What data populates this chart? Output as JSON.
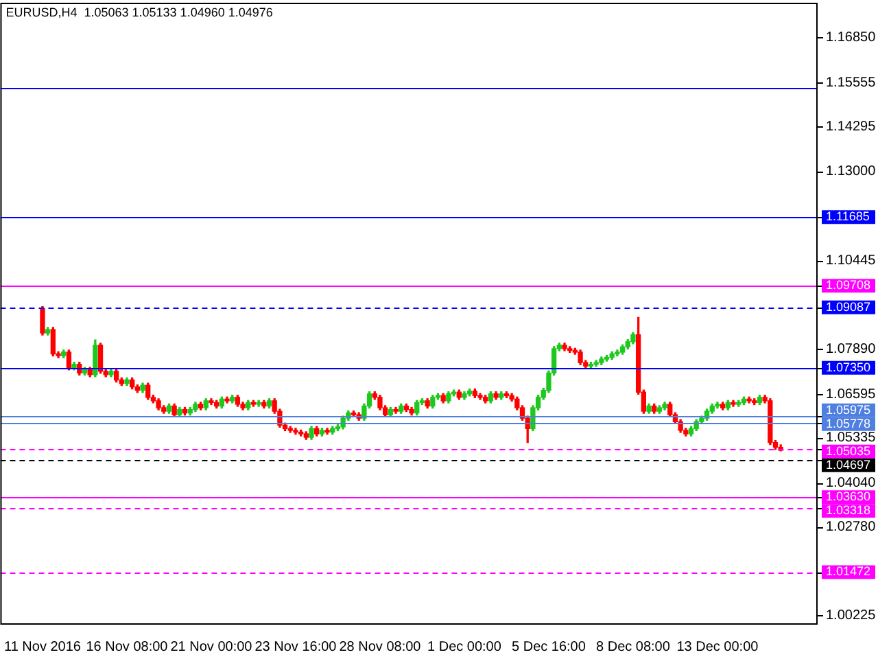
{
  "chart_data": {
    "type": "candlestick",
    "title": "EURUSD,H4  1.05063 1.05133 1.04960 1.04976",
    "categories": [
      "11 Nov 2016",
      null,
      null,
      null,
      null,
      null,
      null,
      null,
      null,
      null,
      null,
      null,
      null,
      null,
      null,
      null,
      "16 Nov 08:00",
      null,
      null,
      null,
      null,
      null,
      null,
      null,
      null,
      null,
      null,
      null,
      null,
      null,
      null,
      null,
      "21 Nov 00:00",
      null,
      null,
      null,
      null,
      null,
      null,
      null,
      null,
      null,
      null,
      null,
      null,
      null,
      null,
      null,
      "23 Nov 16:00",
      null,
      null,
      null,
      null,
      null,
      null,
      null,
      null,
      null,
      null,
      null,
      null,
      null,
      null,
      null,
      "28 Nov 08:00",
      null,
      null,
      null,
      null,
      null,
      null,
      null,
      null,
      null,
      null,
      null,
      null,
      null,
      null,
      null,
      "1 Dec 00:00",
      null,
      null,
      null,
      null,
      null,
      null,
      null,
      null,
      null,
      null,
      null,
      null,
      null,
      null,
      null,
      "5 Dec 16:00",
      null,
      null,
      null,
      null,
      null,
      null,
      null,
      null,
      null,
      null,
      null,
      null,
      null,
      null,
      null,
      "8 Dec 08:00",
      null,
      null,
      null,
      null,
      null,
      null,
      null,
      null,
      null,
      null,
      null,
      null,
      null,
      null,
      null,
      "13 Dec 00:00",
      null,
      null,
      null,
      null,
      null,
      null,
      null,
      null,
      null,
      null,
      null,
      null
    ],
    "ohlc": [
      [
        1.0905,
        1.0911,
        1.0829,
        1.0835
      ],
      [
        1.0835,
        1.0851,
        1.0829,
        1.0845
      ],
      [
        1.0845,
        1.0851,
        1.0769,
        1.0775
      ],
      [
        1.0775,
        1.0781,
        1.0764,
        1.077
      ],
      [
        1.077,
        1.0786,
        1.0764,
        1.078
      ],
      [
        1.078,
        1.0786,
        1.0729,
        1.0735
      ],
      [
        1.0735,
        1.0751,
        1.0729,
        1.0745
      ],
      [
        1.0745,
        1.0751,
        1.0714,
        1.072
      ],
      [
        1.072,
        1.0736,
        1.0714,
        1.073
      ],
      [
        1.073,
        1.0736,
        1.0709,
        1.0715
      ],
      [
        1.0715,
        1.0815,
        1.0709,
        1.08
      ],
      [
        1.08,
        1.0806,
        1.0719,
        1.0725
      ],
      [
        1.0725,
        1.0731,
        1.0709,
        1.0715
      ],
      [
        1.0715,
        1.0731,
        1.0709,
        1.0725
      ],
      [
        1.0725,
        1.0731,
        1.0694,
        1.07
      ],
      [
        1.07,
        1.0706,
        1.0684,
        1.069
      ],
      [
        1.069,
        1.0706,
        1.0684,
        1.07
      ],
      [
        1.07,
        1.0706,
        1.0674,
        1.068
      ],
      [
        1.068,
        1.0686,
        1.0664,
        1.067
      ],
      [
        1.067,
        1.0691,
        1.0664,
        1.0685
      ],
      [
        1.0685,
        1.0691,
        1.0644,
        1.065
      ],
      [
        1.065,
        1.0656,
        1.0634,
        1.064
      ],
      [
        1.064,
        1.0646,
        1.0614,
        1.062
      ],
      [
        1.062,
        1.0626,
        1.0604,
        1.061
      ],
      [
        1.061,
        1.0631,
        1.0604,
        1.0625
      ],
      [
        1.0625,
        1.0631,
        1.0594,
        1.06
      ],
      [
        1.06,
        1.0621,
        1.0594,
        1.0615
      ],
      [
        1.0615,
        1.0621,
        1.0599,
        1.0605
      ],
      [
        1.0605,
        1.0621,
        1.0599,
        1.0615
      ],
      [
        1.0615,
        1.0636,
        1.0609,
        1.063
      ],
      [
        1.063,
        1.0636,
        1.0614,
        1.062
      ],
      [
        1.062,
        1.0646,
        1.0614,
        1.064
      ],
      [
        1.064,
        1.0646,
        1.0629,
        1.0635
      ],
      [
        1.0635,
        1.0641,
        1.0619,
        1.0625
      ],
      [
        1.0625,
        1.0651,
        1.0619,
        1.0645
      ],
      [
        1.0645,
        1.0651,
        1.0634,
        1.064
      ],
      [
        1.064,
        1.0656,
        1.0634,
        1.065
      ],
      [
        1.065,
        1.0656,
        1.0624,
        1.063
      ],
      [
        1.063,
        1.0636,
        1.0614,
        1.062
      ],
      [
        1.062,
        1.0641,
        1.0614,
        1.0635
      ],
      [
        1.0635,
        1.0641,
        1.0624,
        1.063
      ],
      [
        1.063,
        1.0641,
        1.0624,
        1.0635
      ],
      [
        1.0635,
        1.0641,
        1.0619,
        1.0625
      ],
      [
        1.0625,
        1.0646,
        1.0619,
        1.064
      ],
      [
        1.064,
        1.0646,
        1.0604,
        1.061
      ],
      [
        1.061,
        1.0616,
        1.0564,
        1.057
      ],
      [
        1.057,
        1.0576,
        1.0554,
        1.056
      ],
      [
        1.056,
        1.0566,
        1.0549,
        1.0555
      ],
      [
        1.0555,
        1.0561,
        1.0544,
        1.055
      ],
      [
        1.055,
        1.0556,
        1.0539,
        1.0545
      ],
      [
        1.0545,
        1.0551,
        1.0529,
        1.0535
      ],
      [
        1.0535,
        1.0566,
        1.0529,
        1.056
      ],
      [
        1.056,
        1.0566,
        1.0539,
        1.0545
      ],
      [
        1.0545,
        1.0561,
        1.0539,
        1.0555
      ],
      [
        1.0555,
        1.0561,
        1.0544,
        1.055
      ],
      [
        1.055,
        1.0566,
        1.0544,
        1.056
      ],
      [
        1.056,
        1.0571,
        1.0554,
        1.0565
      ],
      [
        1.0565,
        1.0596,
        1.0559,
        1.059
      ],
      [
        1.059,
        1.0611,
        1.0584,
        1.0605
      ],
      [
        1.0605,
        1.0611,
        1.0594,
        1.06
      ],
      [
        1.06,
        1.0606,
        1.0584,
        1.059
      ],
      [
        1.059,
        1.0631,
        1.0584,
        1.0625
      ],
      [
        1.0625,
        1.0666,
        1.0619,
        1.066
      ],
      [
        1.066,
        1.0666,
        1.0644,
        1.065
      ],
      [
        1.065,
        1.0656,
        1.0614,
        1.062
      ],
      [
        1.062,
        1.0626,
        1.0594,
        1.06
      ],
      [
        1.06,
        1.0621,
        1.0594,
        1.0615
      ],
      [
        1.0615,
        1.0621,
        1.0604,
        1.061
      ],
      [
        1.061,
        1.0631,
        1.0604,
        1.0625
      ],
      [
        1.0625,
        1.0631,
        1.0609,
        1.0615
      ],
      [
        1.0615,
        1.0621,
        1.0599,
        1.0605
      ],
      [
        1.0605,
        1.0641,
        1.0599,
        1.0635
      ],
      [
        1.0635,
        1.0646,
        1.0629,
        1.064
      ],
      [
        1.064,
        1.0646,
        1.0619,
        1.0625
      ],
      [
        1.0625,
        1.0656,
        1.0619,
        1.065
      ],
      [
        1.065,
        1.0661,
        1.0644,
        1.0655
      ],
      [
        1.0655,
        1.0661,
        1.0634,
        1.064
      ],
      [
        1.064,
        1.0666,
        1.0634,
        1.066
      ],
      [
        1.066,
        1.0671,
        1.0654,
        1.0665
      ],
      [
        1.0665,
        1.0671,
        1.0644,
        1.065
      ],
      [
        1.065,
        1.0666,
        1.0644,
        1.066
      ],
      [
        1.066,
        1.0674,
        1.0654,
        1.0668
      ],
      [
        1.0668,
        1.0674,
        1.0649,
        1.0655
      ],
      [
        1.0655,
        1.0661,
        1.0644,
        1.065
      ],
      [
        1.065,
        1.0656,
        1.0634,
        1.064
      ],
      [
        1.064,
        1.0666,
        1.0634,
        1.066
      ],
      [
        1.066,
        1.0666,
        1.0644,
        1.065
      ],
      [
        1.065,
        1.0666,
        1.0644,
        1.066
      ],
      [
        1.066,
        1.0666,
        1.0649,
        1.0655
      ],
      [
        1.0655,
        1.0661,
        1.0639,
        1.0645
      ],
      [
        1.0645,
        1.0651,
        1.0614,
        1.062
      ],
      [
        1.062,
        1.0626,
        1.0584,
        1.059
      ],
      [
        1.059,
        1.0596,
        1.052,
        1.056
      ],
      [
        1.056,
        1.0626,
        1.0554,
        1.062
      ],
      [
        1.062,
        1.0656,
        1.0614,
        1.065
      ],
      [
        1.065,
        1.0676,
        1.0644,
        1.067
      ],
      [
        1.067,
        1.0726,
        1.0664,
        1.072
      ],
      [
        1.072,
        1.0796,
        1.0714,
        1.079
      ],
      [
        1.079,
        1.0806,
        1.0784,
        1.08
      ],
      [
        1.08,
        1.0806,
        1.0784,
        1.079
      ],
      [
        1.079,
        1.0796,
        1.0779,
        1.0785
      ],
      [
        1.0785,
        1.0791,
        1.0774,
        1.078
      ],
      [
        1.078,
        1.0786,
        1.0744,
        1.075
      ],
      [
        1.075,
        1.0756,
        1.0734,
        1.074
      ],
      [
        1.074,
        1.0751,
        1.0734,
        1.0745
      ],
      [
        1.0745,
        1.0756,
        1.0739,
        1.075
      ],
      [
        1.075,
        1.0766,
        1.0744,
        1.076
      ],
      [
        1.076,
        1.0771,
        1.0754,
        1.0765
      ],
      [
        1.0765,
        1.0781,
        1.0759,
        1.0775
      ],
      [
        1.0775,
        1.0786,
        1.0769,
        1.078
      ],
      [
        1.078,
        1.0801,
        1.0774,
        1.0795
      ],
      [
        1.0795,
        1.0816,
        1.0789,
        1.081
      ],
      [
        1.081,
        1.0836,
        1.0804,
        1.083
      ],
      [
        1.083,
        1.088,
        1.0659,
        1.0665
      ],
      [
        1.0665,
        1.0671,
        1.0604,
        1.061
      ],
      [
        1.061,
        1.0631,
        1.0604,
        1.0625
      ],
      [
        1.0625,
        1.0631,
        1.0604,
        1.061
      ],
      [
        1.061,
        1.0626,
        1.0604,
        1.062
      ],
      [
        1.062,
        1.0636,
        1.0614,
        1.063
      ],
      [
        1.063,
        1.0636,
        1.0594,
        1.06
      ],
      [
        1.06,
        1.0606,
        1.0574,
        1.058
      ],
      [
        1.058,
        1.0586,
        1.0549,
        1.0555
      ],
      [
        1.0555,
        1.0561,
        1.0539,
        1.0545
      ],
      [
        1.0545,
        1.0566,
        1.0539,
        1.056
      ],
      [
        1.056,
        1.0586,
        1.0554,
        1.058
      ],
      [
        1.058,
        1.0596,
        1.0574,
        1.059
      ],
      [
        1.059,
        1.0616,
        1.0584,
        1.061
      ],
      [
        1.061,
        1.0631,
        1.0604,
        1.0625
      ],
      [
        1.0625,
        1.0636,
        1.0619,
        1.063
      ],
      [
        1.063,
        1.0636,
        1.0614,
        1.062
      ],
      [
        1.062,
        1.0641,
        1.0614,
        1.0635
      ],
      [
        1.0635,
        1.0641,
        1.0624,
        1.063
      ],
      [
        1.063,
        1.0641,
        1.0624,
        1.0635
      ],
      [
        1.0635,
        1.0651,
        1.0629,
        1.0645
      ],
      [
        1.0645,
        1.0651,
        1.0634,
        1.064
      ],
      [
        1.064,
        1.0646,
        1.0629,
        1.0635
      ],
      [
        1.0635,
        1.0656,
        1.0629,
        1.065
      ],
      [
        1.065,
        1.0656,
        1.0634,
        1.064
      ],
      [
        1.064,
        1.0646,
        1.0514,
        1.052
      ],
      [
        1.052,
        1.0526,
        1.05,
        1.05063
      ],
      [
        1.05063,
        1.05133,
        1.0496,
        1.04976
      ]
    ],
    "ylim": [
      1.0,
      1.1785
    ],
    "yticks": [
      {
        "value": 1.1685,
        "label": "1.16850"
      },
      1.15555,
      1.14295,
      {
        "value": 1.13,
        "label": "1.13000"
      },
      1.10445,
      {
        "value": 1.0789,
        "label": "1.07890"
      },
      1.06595,
      1.05335,
      {
        "value": 1.0404,
        "label": "1.04040"
      },
      {
        "value": 1.0278,
        "label": "1.02780"
      },
      1.00225
    ],
    "ref_lines": [
      {
        "axis": "y",
        "value": 1.154,
        "color": "#0000ff"
      },
      {
        "axis": "y",
        "value": 1.11685,
        "label": "1.11685",
        "color": "#0000ff"
      },
      {
        "axis": "y",
        "value": 1.09708,
        "label": "1.09708",
        "color": "#ff00ff"
      },
      {
        "axis": "y",
        "value": 1.09087,
        "label": "1.09087",
        "color": "#0000ff",
        "line_style": "dashed"
      },
      {
        "axis": "y",
        "value": 1.0735,
        "label": "1.07350",
        "color": "#0000ff"
      },
      {
        "axis": "y",
        "value": 1.05975,
        "label": "1.05975",
        "color": "#4f7fe0"
      },
      {
        "axis": "y",
        "value": 1.05778,
        "label": "1.05778",
        "color": "#4f7fe0"
      },
      {
        "axis": "y",
        "value": 1.05035,
        "label": "1.05035",
        "color": "#ff00ff",
        "line_style": "dashed"
      },
      {
        "axis": "y",
        "value": 1.04697,
        "label": "1.04697",
        "color": "#000000",
        "line_style": "dashed"
      },
      {
        "axis": "y",
        "value": 1.0363,
        "label": "1.03630",
        "color": "#ff00ff"
      },
      {
        "axis": "y",
        "value": 1.03318,
        "label": "1.03318",
        "color": "#ff00ff",
        "line_style": "dashed"
      },
      {
        "axis": "y",
        "value": 1.01472,
        "label": "1.01472",
        "color": "#ff00ff",
        "line_style": "dashed"
      }
    ]
  }
}
